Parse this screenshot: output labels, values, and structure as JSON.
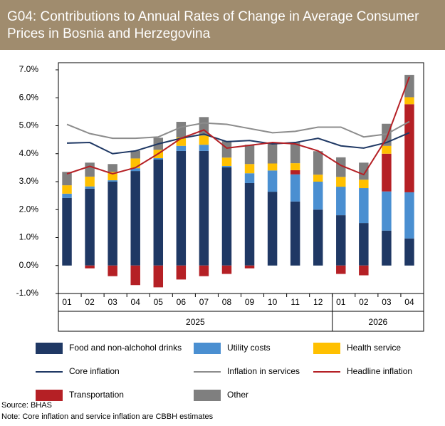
{
  "chart_data": {
    "type": "bar",
    "stacked": true,
    "title": "G04: Contributions to Annual Rates of Change in Average Consumer Prices in Bosnia and Herzegovina",
    "categories": [
      "01",
      "02",
      "03",
      "04",
      "05",
      "06",
      "07",
      "08",
      "09",
      "10",
      "11",
      "12",
      "01",
      "02",
      "03",
      "04"
    ],
    "category_groups": [
      {
        "label": "2025",
        "size": 12
      },
      {
        "label": "2026",
        "size": 4
      }
    ],
    "ylim": [
      -1,
      7
    ],
    "yticks": [
      {
        "value": -1,
        "label": "-1.0%"
      },
      {
        "value": 0,
        "label": "0.0%"
      },
      {
        "value": 1,
        "label": "1.0%"
      },
      {
        "value": 2,
        "label": "2.0%"
      },
      {
        "value": 3,
        "label": "3.0%"
      },
      {
        "value": 4,
        "label": "4.0%"
      },
      {
        "value": 5,
        "label": "5.0%"
      },
      {
        "value": 6,
        "label": "6.0%"
      },
      {
        "value": 7,
        "label": "7.0%"
      }
    ],
    "grid": false,
    "series": [
      {
        "name": "Food and non-alchohol drinks",
        "kind": "bar",
        "color": "#1f3864",
        "values": [
          2.42,
          2.75,
          3.0,
          3.38,
          3.79,
          4.1,
          4.1,
          3.51,
          2.95,
          2.64,
          2.29,
          2.0,
          1.8,
          1.52,
          1.25,
          0.97
        ]
      },
      {
        "name": "Utility costs",
        "kind": "bar",
        "color": "#4a8fd1",
        "values": [
          0.15,
          0.08,
          0.05,
          0.1,
          0.05,
          0.18,
          0.22,
          0.05,
          0.35,
          0.76,
          0.97,
          1.0,
          1.02,
          1.25,
          1.4,
          1.65
        ]
      },
      {
        "name": "Health service",
        "kind": "bar",
        "color": "#ffc000",
        "values": [
          0.3,
          0.35,
          0.3,
          0.35,
          0.3,
          0.3,
          0.33,
          0.3,
          0.33,
          0.25,
          0.25,
          0.25,
          0.35,
          0.3,
          0.28,
          0.25
        ]
      },
      {
        "name": "Core inflation",
        "kind": "line",
        "color": "#1f3864",
        "values": [
          4.38,
          4.4,
          4.0,
          4.1,
          4.35,
          4.55,
          4.7,
          4.43,
          4.47,
          4.35,
          4.4,
          4.55,
          4.28,
          4.2,
          4.4,
          4.75
        ]
      },
      {
        "name": "Inflation in services",
        "kind": "line",
        "color": "#8c8c8c",
        "values": [
          5.05,
          4.72,
          4.55,
          4.55,
          4.6,
          4.95,
          5.1,
          5.05,
          4.9,
          4.75,
          4.8,
          4.95,
          4.95,
          4.6,
          4.7,
          5.15
        ]
      },
      {
        "name": "Headline inflation",
        "kind": "line",
        "color": "#b52025",
        "values": [
          3.28,
          3.55,
          3.28,
          3.5,
          4.0,
          4.55,
          4.85,
          4.2,
          4.3,
          4.4,
          4.35,
          4.1,
          3.58,
          3.25,
          4.55,
          6.75
        ]
      },
      {
        "name": "Transportation",
        "kind": "bar",
        "color": "#b52025",
        "values": [
          0,
          -0.1,
          -0.38,
          -0.7,
          -0.78,
          -0.5,
          -0.38,
          -0.3,
          -0.1,
          0,
          0.15,
          0,
          -0.3,
          -0.35,
          1.35,
          3.15
        ]
      },
      {
        "name": "Other",
        "kind": "bar",
        "color": "#7f7f7f",
        "values": [
          0.48,
          0.5,
          0.28,
          0.28,
          0.43,
          0.56,
          0.66,
          0.6,
          0.69,
          0.7,
          0.74,
          0.84,
          0.7,
          0.61,
          0.79,
          0.8
        ]
      }
    ],
    "source": "Source: BHAS",
    "note": "Note: Core inflation and service inflation are CBBH estimates"
  }
}
